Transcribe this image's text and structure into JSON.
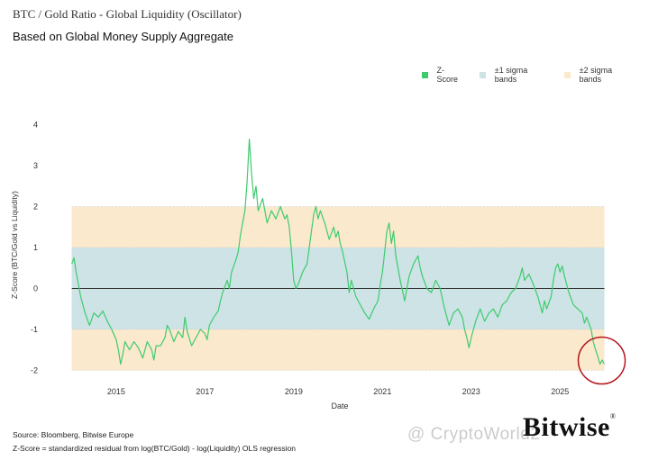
{
  "header": {
    "title": "BTC / Gold Ratio - Global Liquidity (Oscillator)",
    "subtitle": "Based on Global Money Supply Aggregate"
  },
  "legend": {
    "zscore": "Z-Score",
    "sigma1": "±1 sigma bands",
    "sigma2": "±2 sigma bands"
  },
  "footer": {
    "source": "Source: Bloomberg, Bitwise Europe",
    "note": "Z-Score = standardized residual from log(BTC/Gold) - log(Liquidity) OLS regression"
  },
  "brand": {
    "name": "Bitwise",
    "mark": "®"
  },
  "watermark": {
    "text": "@ CryptoWorld2"
  },
  "colors": {
    "line": "#3ecb6e",
    "sigma1": "#cde3e6",
    "sigma2": "#fbe9cd",
    "zero": "#333333",
    "circle": "#b3161d"
  },
  "chart_data": {
    "type": "line",
    "title": "BTC / Gold Ratio - Global Liquidity (Oscillator)",
    "xlabel": "Date",
    "ylabel": "Z-Score (BTC/Gold vs Liquidity)",
    "xlim": [
      2013.5,
      2026.7
    ],
    "ylim": [
      -2.3,
      4.3
    ],
    "yticks": [
      -2,
      -1,
      0,
      1,
      2,
      3,
      4
    ],
    "xticks": [
      "2015",
      "2017",
      "2019",
      "2021",
      "2023",
      "2025"
    ],
    "xtick_values": [
      2015,
      2017,
      2019,
      2021,
      2023,
      2025
    ],
    "bands": {
      "sigma1": [
        -1,
        1
      ],
      "sigma2": [
        -2,
        2
      ],
      "x_range": [
        2014.0,
        2026.0
      ]
    },
    "series": [
      {
        "name": "Z-Score",
        "points": [
          [
            2014.0,
            0.6
          ],
          [
            2014.05,
            0.75
          ],
          [
            2014.1,
            0.4
          ],
          [
            2014.2,
            -0.2
          ],
          [
            2014.3,
            -0.6
          ],
          [
            2014.4,
            -0.9
          ],
          [
            2014.5,
            -0.6
          ],
          [
            2014.6,
            -0.7
          ],
          [
            2014.7,
            -0.55
          ],
          [
            2014.8,
            -0.8
          ],
          [
            2014.9,
            -1.0
          ],
          [
            2015.0,
            -1.25
          ],
          [
            2015.05,
            -1.5
          ],
          [
            2015.1,
            -1.85
          ],
          [
            2015.15,
            -1.6
          ],
          [
            2015.2,
            -1.3
          ],
          [
            2015.3,
            -1.5
          ],
          [
            2015.4,
            -1.3
          ],
          [
            2015.5,
            -1.45
          ],
          [
            2015.6,
            -1.7
          ],
          [
            2015.7,
            -1.3
          ],
          [
            2015.8,
            -1.5
          ],
          [
            2015.85,
            -1.75
          ],
          [
            2015.9,
            -1.4
          ],
          [
            2016.0,
            -1.4
          ],
          [
            2016.1,
            -1.2
          ],
          [
            2016.15,
            -0.9
          ],
          [
            2016.2,
            -1.0
          ],
          [
            2016.3,
            -1.3
          ],
          [
            2016.4,
            -1.05
          ],
          [
            2016.5,
            -1.2
          ],
          [
            2016.55,
            -0.7
          ],
          [
            2016.6,
            -1.05
          ],
          [
            2016.7,
            -1.4
          ],
          [
            2016.8,
            -1.2
          ],
          [
            2016.9,
            -1.0
          ],
          [
            2017.0,
            -1.1
          ],
          [
            2017.05,
            -1.25
          ],
          [
            2017.1,
            -0.9
          ],
          [
            2017.2,
            -0.7
          ],
          [
            2017.3,
            -0.55
          ],
          [
            2017.35,
            -0.3
          ],
          [
            2017.4,
            -0.1
          ],
          [
            2017.5,
            0.2
          ],
          [
            2017.55,
            0.0
          ],
          [
            2017.6,
            0.4
          ],
          [
            2017.7,
            0.7
          ],
          [
            2017.75,
            0.9
          ],
          [
            2017.8,
            1.3
          ],
          [
            2017.9,
            1.9
          ],
          [
            2017.95,
            2.6
          ],
          [
            2018.0,
            3.65
          ],
          [
            2018.05,
            2.8
          ],
          [
            2018.1,
            2.2
          ],
          [
            2018.15,
            2.5
          ],
          [
            2018.2,
            1.9
          ],
          [
            2018.3,
            2.2
          ],
          [
            2018.4,
            1.6
          ],
          [
            2018.5,
            1.9
          ],
          [
            2018.6,
            1.7
          ],
          [
            2018.7,
            2.0
          ],
          [
            2018.8,
            1.7
          ],
          [
            2018.85,
            1.8
          ],
          [
            2018.9,
            1.5
          ],
          [
            2018.95,
            0.9
          ],
          [
            2019.0,
            0.2
          ],
          [
            2019.05,
            0.0
          ],
          [
            2019.1,
            0.1
          ],
          [
            2019.2,
            0.4
          ],
          [
            2019.3,
            0.6
          ],
          [
            2019.35,
            1.0
          ],
          [
            2019.4,
            1.4
          ],
          [
            2019.45,
            1.8
          ],
          [
            2019.5,
            2.0
          ],
          [
            2019.55,
            1.7
          ],
          [
            2019.6,
            1.9
          ],
          [
            2019.7,
            1.6
          ],
          [
            2019.8,
            1.2
          ],
          [
            2019.9,
            1.5
          ],
          [
            2019.95,
            1.25
          ],
          [
            2020.0,
            1.4
          ],
          [
            2020.05,
            1.1
          ],
          [
            2020.1,
            0.9
          ],
          [
            2020.2,
            0.4
          ],
          [
            2020.25,
            -0.1
          ],
          [
            2020.3,
            0.2
          ],
          [
            2020.4,
            -0.2
          ],
          [
            2020.5,
            -0.4
          ],
          [
            2020.6,
            -0.6
          ],
          [
            2020.7,
            -0.75
          ],
          [
            2020.8,
            -0.5
          ],
          [
            2020.9,
            -0.3
          ],
          [
            2020.95,
            0.1
          ],
          [
            2021.0,
            0.4
          ],
          [
            2021.05,
            0.9
          ],
          [
            2021.1,
            1.4
          ],
          [
            2021.15,
            1.6
          ],
          [
            2021.2,
            1.1
          ],
          [
            2021.25,
            1.4
          ],
          [
            2021.3,
            0.8
          ],
          [
            2021.4,
            0.2
          ],
          [
            2021.5,
            -0.3
          ],
          [
            2021.55,
            0.0
          ],
          [
            2021.6,
            0.3
          ],
          [
            2021.7,
            0.6
          ],
          [
            2021.8,
            0.8
          ],
          [
            2021.85,
            0.5
          ],
          [
            2021.9,
            0.3
          ],
          [
            2022.0,
            0.0
          ],
          [
            2022.1,
            -0.1
          ],
          [
            2022.2,
            0.2
          ],
          [
            2022.3,
            0.0
          ],
          [
            2022.4,
            -0.5
          ],
          [
            2022.5,
            -0.9
          ],
          [
            2022.6,
            -0.6
          ],
          [
            2022.7,
            -0.5
          ],
          [
            2022.8,
            -0.7
          ],
          [
            2022.85,
            -1.0
          ],
          [
            2022.9,
            -1.2
          ],
          [
            2022.95,
            -1.45
          ],
          [
            2023.0,
            -1.2
          ],
          [
            2023.05,
            -1.0
          ],
          [
            2023.1,
            -0.8
          ],
          [
            2023.2,
            -0.5
          ],
          [
            2023.3,
            -0.8
          ],
          [
            2023.4,
            -0.6
          ],
          [
            2023.5,
            -0.5
          ],
          [
            2023.6,
            -0.7
          ],
          [
            2023.7,
            -0.4
          ],
          [
            2023.8,
            -0.3
          ],
          [
            2023.9,
            -0.1
          ],
          [
            2024.0,
            0.0
          ],
          [
            2024.1,
            0.3
          ],
          [
            2024.15,
            0.5
          ],
          [
            2024.2,
            0.2
          ],
          [
            2024.3,
            0.35
          ],
          [
            2024.4,
            0.1
          ],
          [
            2024.5,
            -0.2
          ],
          [
            2024.6,
            -0.6
          ],
          [
            2024.65,
            -0.3
          ],
          [
            2024.7,
            -0.5
          ],
          [
            2024.8,
            -0.2
          ],
          [
            2024.85,
            0.2
          ],
          [
            2024.9,
            0.5
          ],
          [
            2024.95,
            0.6
          ],
          [
            2025.0,
            0.4
          ],
          [
            2025.05,
            0.55
          ],
          [
            2025.1,
            0.3
          ],
          [
            2025.2,
            -0.1
          ],
          [
            2025.3,
            -0.4
          ],
          [
            2025.4,
            -0.5
          ],
          [
            2025.5,
            -0.6
          ],
          [
            2025.55,
            -0.85
          ],
          [
            2025.6,
            -0.7
          ],
          [
            2025.7,
            -1.0
          ],
          [
            2025.75,
            -1.3
          ],
          [
            2025.8,
            -1.5
          ],
          [
            2025.85,
            -1.65
          ],
          [
            2025.9,
            -1.85
          ],
          [
            2025.95,
            -1.75
          ],
          [
            2026.0,
            -1.85
          ]
        ]
      }
    ],
    "annotation": {
      "type": "circle",
      "target": "latest reading"
    }
  }
}
